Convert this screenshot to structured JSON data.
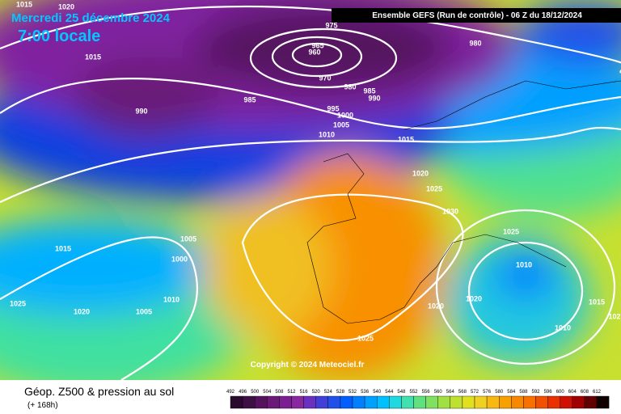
{
  "header": {
    "date": "Mercredi 25 décembre 2024",
    "time": "7:00 locale",
    "model": "Ensemble GEFS  (Run de contrôle)  -  06 Z du 18/12/2024"
  },
  "isobar_labels": [
    1015,
    1020,
    975,
    965,
    960,
    980,
    1015,
    970,
    980,
    985,
    990,
    985,
    990,
    995,
    1000,
    1005,
    1010,
    1015,
    1020,
    1025,
    1030,
    1025,
    1005,
    1015,
    1000,
    1010,
    1010,
    1025,
    1020,
    1005,
    1020,
    1020,
    1015,
    1010,
    1025,
    102
  ],
  "copyright": "Copyright © 2024 Meteociel.fr",
  "footer": {
    "title": "Géop. Z500 & pression au sol",
    "subtitle": "(+ 168h)"
  },
  "scale": {
    "values": [
      492,
      496,
      500,
      504,
      508,
      512,
      516,
      520,
      524,
      528,
      532,
      536,
      540,
      544,
      548,
      552,
      556,
      560,
      564,
      568,
      572,
      576,
      580,
      584,
      588,
      592,
      596,
      600,
      604,
      608,
      612
    ],
    "colors": [
      "#2a0a2e",
      "#3d0f45",
      "#55135e",
      "#6b1a78",
      "#7a2090",
      "#8a28a0",
      "#6a30c0",
      "#4040d8",
      "#2050e8",
      "#0060ff",
      "#0080ff",
      "#00a0ff",
      "#00c0ff",
      "#20d8e0",
      "#40e0b0",
      "#60e080",
      "#80e060",
      "#a0e040",
      "#c0e030",
      "#e0e020",
      "#f0d020",
      "#f8b810",
      "#f8a000",
      "#f88800",
      "#f87000",
      "#f05000",
      "#e83000",
      "#d01000",
      "#a00000",
      "#600000",
      "#100000"
    ]
  }
}
